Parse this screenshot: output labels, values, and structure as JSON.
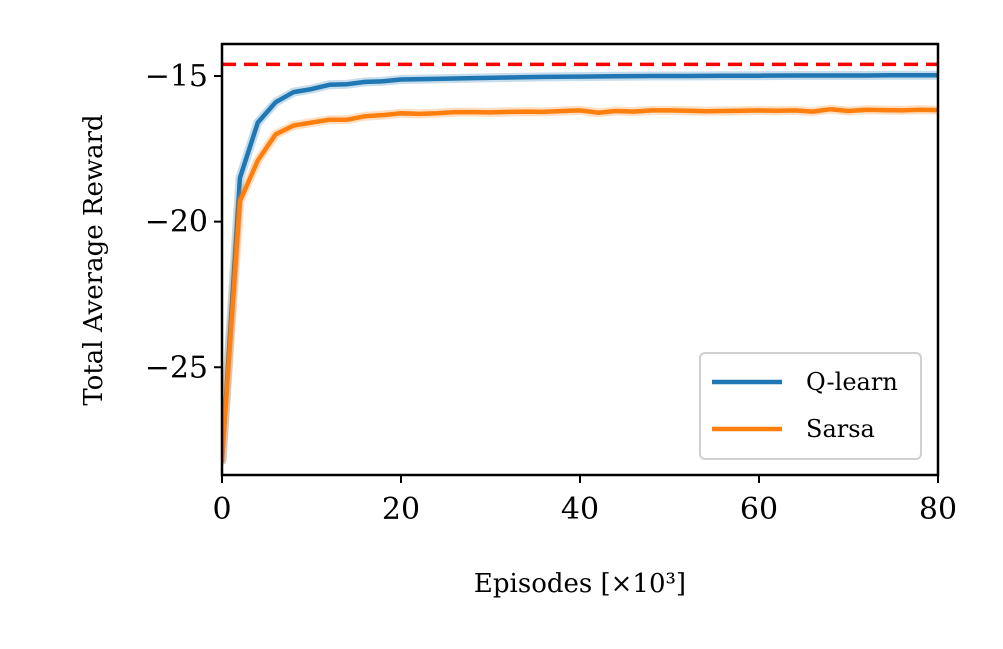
{
  "chart_data": {
    "type": "line",
    "title": "",
    "xlabel": "Episodes [×10³]",
    "ylabel": "Total Average Reward",
    "xlim": [
      0,
      80
    ],
    "ylim": [
      -28.7,
      -13.9
    ],
    "xticks": [
      0,
      20,
      40,
      60,
      80
    ],
    "yticks": [
      -25,
      -20,
      -15
    ],
    "grid": false,
    "legend": "bottom-right",
    "reference_line": {
      "y": -14.6,
      "style": "dashed",
      "color": "#ff0000"
    },
    "series": [
      {
        "name": "Q-learn",
        "color": "#1f77b4",
        "x": [
          0,
          2,
          4,
          6,
          8,
          10,
          12,
          14,
          16,
          18,
          20,
          24,
          28,
          32,
          36,
          40,
          44,
          48,
          52,
          56,
          60,
          64,
          68,
          72,
          76,
          80
        ],
        "y": [
          -28.2,
          -18.5,
          -16.6,
          -15.9,
          -15.55,
          -15.45,
          -15.3,
          -15.28,
          -15.2,
          -15.18,
          -15.12,
          -15.1,
          -15.07,
          -15.05,
          -15.03,
          -15.02,
          -15.01,
          -15.0,
          -15.0,
          -14.99,
          -14.99,
          -14.98,
          -14.98,
          -14.98,
          -14.97,
          -14.97
        ]
      },
      {
        "name": "Sarsa",
        "color": "#ff7f0e",
        "x": [
          0,
          2,
          4,
          6,
          8,
          10,
          12,
          14,
          16,
          18,
          20,
          22,
          24,
          26,
          28,
          30,
          32,
          34,
          36,
          38,
          40,
          42,
          44,
          46,
          48,
          50,
          52,
          54,
          56,
          58,
          60,
          62,
          64,
          66,
          68,
          70,
          72,
          74,
          76,
          78,
          80
        ],
        "y": [
          -28.2,
          -19.3,
          -17.9,
          -17.0,
          -16.7,
          -16.6,
          -16.5,
          -16.5,
          -16.38,
          -16.34,
          -16.28,
          -16.3,
          -16.28,
          -16.24,
          -16.24,
          -16.25,
          -16.23,
          -16.22,
          -16.23,
          -16.2,
          -16.18,
          -16.26,
          -16.2,
          -16.22,
          -16.18,
          -16.18,
          -16.19,
          -16.21,
          -16.2,
          -16.19,
          -16.18,
          -16.19,
          -16.18,
          -16.22,
          -16.14,
          -16.2,
          -16.16,
          -16.17,
          -16.18,
          -16.16,
          -16.17
        ]
      }
    ]
  }
}
